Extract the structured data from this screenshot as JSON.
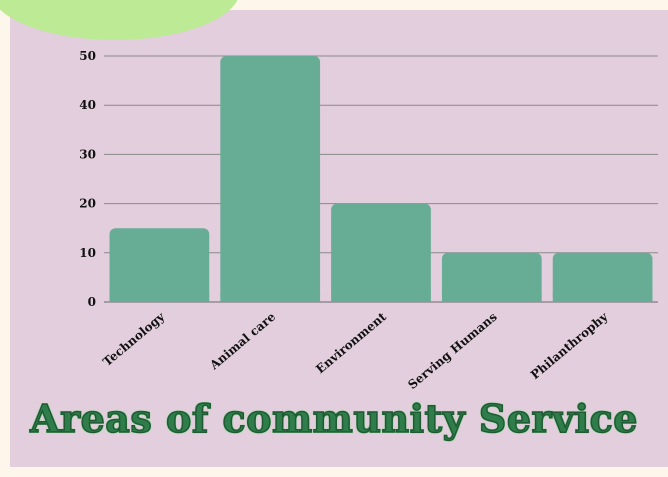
{
  "colors": {
    "background": "#e2cedd",
    "bar": "#67ac94",
    "accent_blob": "#bdea95",
    "title": "#2e7d4a"
  },
  "title": "Areas of community Service",
  "chart_data": {
    "type": "bar",
    "title": "Areas of community Service",
    "categories": [
      "Technology",
      "Animal care",
      "Environment",
      "Serving Humans",
      "Philanthrophy"
    ],
    "values": [
      15,
      50,
      20,
      10,
      10
    ],
    "ylim": [
      0,
      50
    ],
    "yticks": [
      0,
      10,
      20,
      30,
      40,
      50
    ],
    "grid": true,
    "xlabel": "",
    "ylabel": ""
  }
}
